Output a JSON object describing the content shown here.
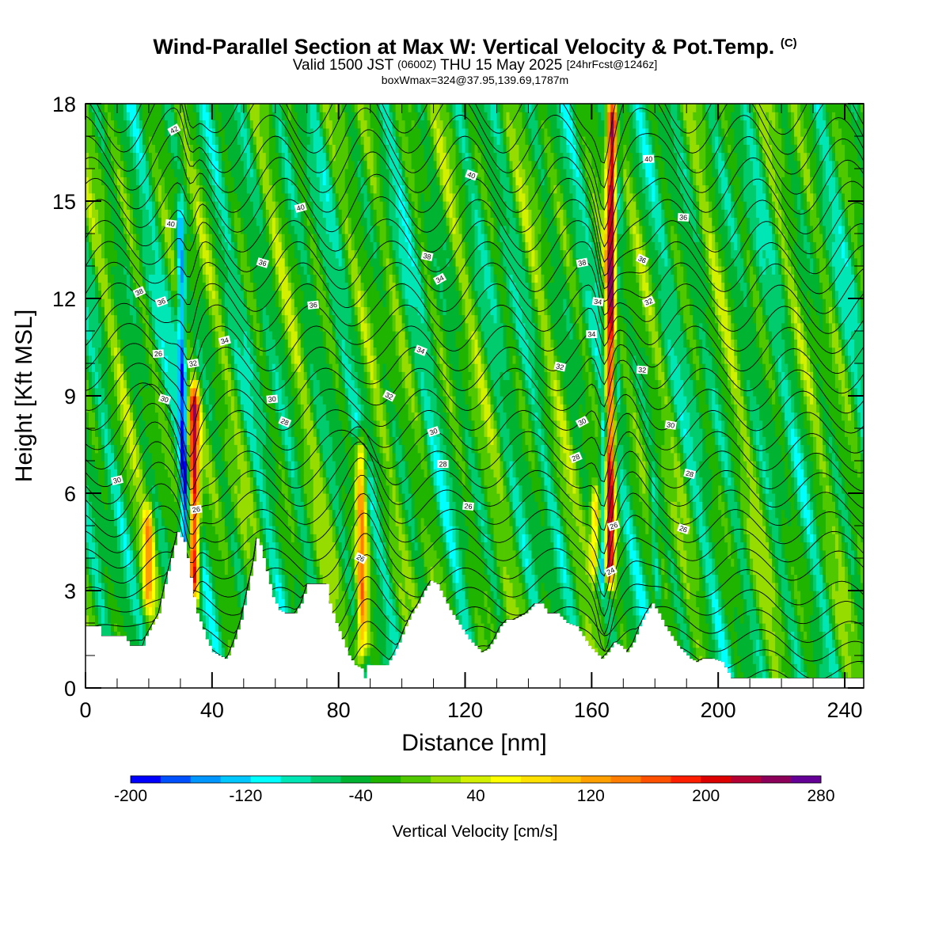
{
  "header": {
    "title": "Wind-Parallel Section at Max W: Vertical Velocity & Pot.Temp.",
    "title_mark": "(C)",
    "subtitle_a": "Valid 1500 JST",
    "subtitle_b": "(0600Z)",
    "subtitle_c": "THU 15 May 2025",
    "subtitle_d": "[24hrFcst@1246z]",
    "info": "boxWmax=324@37.95,139.69,1787m"
  },
  "chart_data": {
    "type": "heatmap",
    "xlabel": "Distance [nm]",
    "ylabel": "Height [Kft MSL]",
    "xlim": [
      0,
      246
    ],
    "ylim": [
      0,
      18
    ],
    "x_ticks": [
      "0",
      "40",
      "80",
      "120",
      "160",
      "200",
      "240"
    ],
    "y_ticks": [
      "0",
      "3",
      "6",
      "9",
      "12",
      "15",
      "18"
    ],
    "colorbar": {
      "title": "Vertical Velocity [cm/s]",
      "range": [
        -200,
        280
      ],
      "step": 20,
      "tick_labels": [
        "-200",
        "-120",
        "-40",
        "40",
        "120",
        "200",
        "280"
      ],
      "colors": [
        "#0000ff",
        "#0050ff",
        "#0096ff",
        "#00c8ff",
        "#00ffff",
        "#00e6b4",
        "#00cc6e",
        "#00b432",
        "#1eb400",
        "#50c800",
        "#96dc00",
        "#d2f000",
        "#ffff00",
        "#ffe100",
        "#ffc800",
        "#ffa000",
        "#ff7d00",
        "#ff5000",
        "#ff1e00",
        "#dc0000",
        "#b40032",
        "#8c005a",
        "#640096"
      ]
    },
    "terrain_kft": [
      [
        0,
        1.9
      ],
      [
        4,
        1.9
      ],
      [
        5,
        1.6
      ],
      [
        12,
        1.6
      ],
      [
        14,
        1.3
      ],
      [
        18,
        1.3
      ],
      [
        19,
        1.6
      ],
      [
        23,
        2.3
      ],
      [
        25,
        3.2
      ],
      [
        27,
        4.0
      ],
      [
        29,
        4.8
      ],
      [
        31,
        4.5
      ],
      [
        32,
        4.0
      ],
      [
        33,
        3.4
      ],
      [
        34,
        2.8
      ],
      [
        35,
        2.3
      ],
      [
        37,
        1.8
      ],
      [
        38,
        1.5
      ],
      [
        40,
        1.1
      ],
      [
        42,
        1.0
      ],
      [
        44,
        0.9
      ],
      [
        45,
        1.0
      ],
      [
        47,
        1.5
      ],
      [
        49,
        2.1
      ],
      [
        51,
        3.0
      ],
      [
        53,
        3.9
      ],
      [
        54,
        4.6
      ],
      [
        55,
        4.4
      ],
      [
        57,
        3.6
      ],
      [
        59,
        2.8
      ],
      [
        61,
        2.4
      ],
      [
        63,
        2.3
      ],
      [
        66,
        2.3
      ],
      [
        68,
        2.6
      ],
      [
        70,
        3.2
      ],
      [
        76,
        3.2
      ],
      [
        77,
        2.6
      ],
      [
        79,
        2.0
      ],
      [
        81,
        1.5
      ],
      [
        83,
        1.0
      ],
      [
        85,
        0.7
      ],
      [
        87,
        0.6
      ],
      [
        88,
        0.3
      ],
      [
        89,
        0.7
      ],
      [
        95,
        0.7
      ],
      [
        97,
        1.0
      ],
      [
        99,
        1.4
      ],
      [
        101,
        1.9
      ],
      [
        103,
        2.3
      ],
      [
        105,
        2.6
      ],
      [
        107,
        3.0
      ],
      [
        109,
        3.3
      ],
      [
        111,
        3.2
      ],
      [
        113,
        2.8
      ],
      [
        115,
        2.4
      ],
      [
        117,
        2.1
      ],
      [
        119,
        1.8
      ],
      [
        121,
        1.5
      ],
      [
        123,
        1.3
      ],
      [
        125,
        1.1
      ],
      [
        127,
        1.2
      ],
      [
        129,
        1.5
      ],
      [
        131,
        1.9
      ],
      [
        133,
        2.1
      ],
      [
        135,
        2.1
      ],
      [
        137,
        2.2
      ],
      [
        139,
        2.3
      ],
      [
        142,
        2.6
      ],
      [
        144,
        2.6
      ],
      [
        146,
        2.3
      ],
      [
        149,
        2.3
      ],
      [
        152,
        2.0
      ],
      [
        155,
        1.9
      ],
      [
        157,
        1.6
      ],
      [
        159,
        1.3
      ],
      [
        161,
        1.1
      ],
      [
        163,
        0.9
      ],
      [
        165,
        1.1
      ],
      [
        167,
        1.4
      ],
      [
        169,
        1.3
      ],
      [
        171,
        1.1
      ],
      [
        173,
        1.4
      ],
      [
        175,
        1.9
      ],
      [
        177,
        2.3
      ],
      [
        179,
        2.6
      ],
      [
        181,
        2.3
      ],
      [
        183,
        1.9
      ],
      [
        185,
        1.6
      ],
      [
        187,
        1.3
      ],
      [
        189,
        1.1
      ],
      [
        191,
        0.9
      ],
      [
        193,
        0.8
      ],
      [
        195,
        0.9
      ],
      [
        198,
        0.9
      ],
      [
        201,
        0.8
      ],
      [
        204,
        0.3
      ],
      [
        246,
        0.3
      ]
    ],
    "contour_labels": [
      "42",
      "40",
      "40",
      "40",
      "40",
      "38",
      "38",
      "38",
      "36",
      "36",
      "36",
      "36",
      "36",
      "34",
      "34",
      "34",
      "34",
      "34",
      "32",
      "32",
      "32",
      "32",
      "32",
      "30",
      "30",
      "30",
      "30",
      "30",
      "30",
      "28",
      "28",
      "28",
      "28",
      "26",
      "26",
      "26",
      "26",
      "26",
      "26",
      "24"
    ],
    "updrafts": [
      {
        "x": 34.5,
        "z_bottom": 2.8,
        "z_top": 9.2,
        "w": 210
      },
      {
        "x": 20,
        "z_bottom": 2.5,
        "z_top": 5.5,
        "w": 90
      },
      {
        "x": 87.5,
        "z_bottom": 0.8,
        "z_top": 7.8,
        "w": 120
      },
      {
        "x": 165.5,
        "z_bottom": 3.2,
        "z_top": 18,
        "w": 220
      },
      {
        "x": 161,
        "z_bottom": 3.5,
        "z_top": 6.0,
        "w": 90
      }
    ],
    "downdrafts": [
      {
        "x": 31.5,
        "z_bottom": 4.0,
        "z_top": 15,
        "w": -160
      },
      {
        "x": 163.5,
        "z_bottom": 3.2,
        "z_top": 8.5,
        "w": -180
      },
      {
        "x": 167.5,
        "z_bottom": 8.5,
        "z_top": 18,
        "w": -120
      },
      {
        "x": 181,
        "z_bottom": 2.8,
        "z_top": 6.5,
        "w": -110
      }
    ]
  }
}
